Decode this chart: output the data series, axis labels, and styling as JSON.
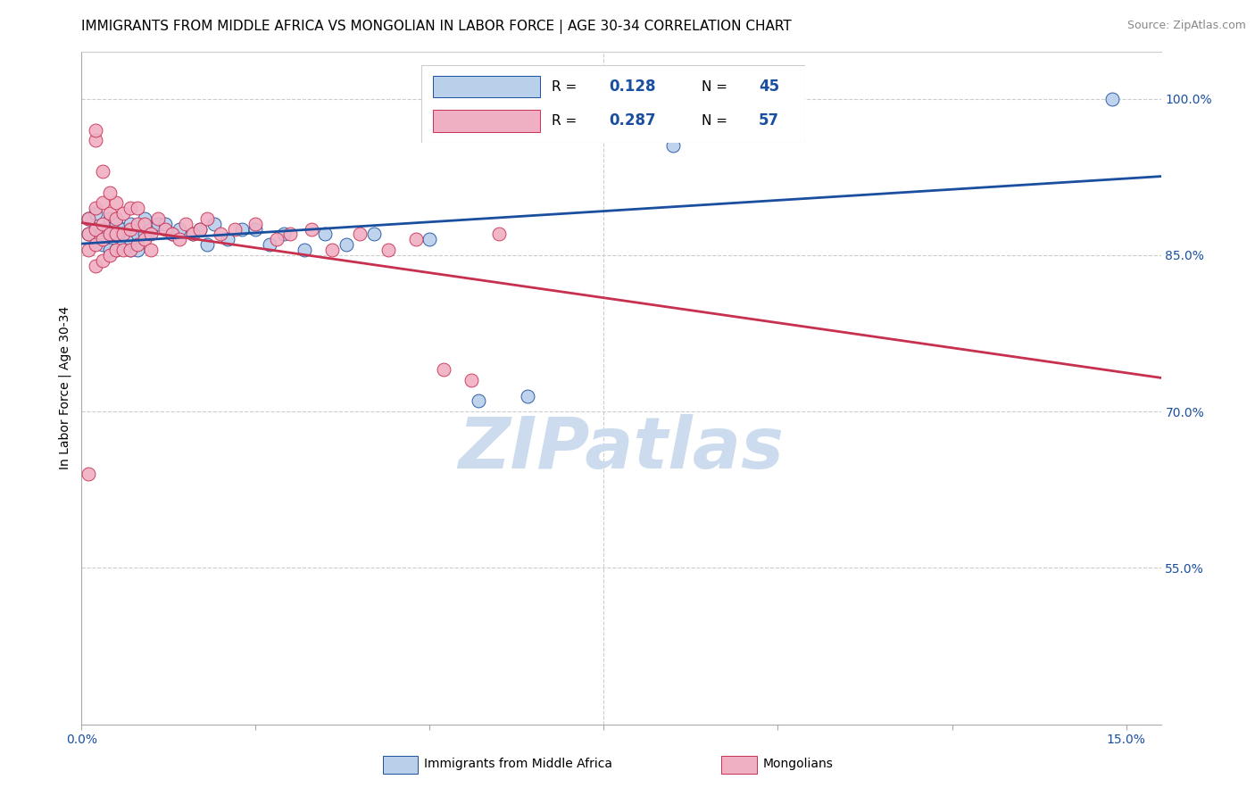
{
  "title": "IMMIGRANTS FROM MIDDLE AFRICA VS MONGOLIAN IN LABOR FORCE | AGE 30-34 CORRELATION CHART",
  "source": "Source: ZipAtlas.com",
  "ylabel": "In Labor Force | Age 30-34",
  "xlim": [
    0.0,
    0.155
  ],
  "ylim": [
    0.4,
    1.045
  ],
  "right_yticks": [
    1.0,
    0.85,
    0.7,
    0.55
  ],
  "right_yticklabels": [
    "100.0%",
    "85.0%",
    "70.0%",
    "55.0%"
  ],
  "xticks": [
    0.0,
    0.025,
    0.05,
    0.075,
    0.1,
    0.125,
    0.15
  ],
  "xticklabels": [
    "0.0%",
    "",
    "",
    "",
    "",
    "",
    "15.0%"
  ],
  "blue_R": "0.128",
  "blue_N": "45",
  "pink_R": "0.287",
  "pink_N": "57",
  "blue_color": "#b8d0ea",
  "pink_color": "#f0b0c4",
  "blue_line_color": "#1a4fa0",
  "pink_line_color": "#c83050",
  "blue_label": "Immigrants from Middle Africa",
  "pink_label": "Mongolians",
  "blue_x": [
    0.001,
    0.001,
    0.002,
    0.002,
    0.003,
    0.003,
    0.004,
    0.004,
    0.004,
    0.005,
    0.005,
    0.005,
    0.006,
    0.006,
    0.007,
    0.007,
    0.007,
    0.008,
    0.008,
    0.009,
    0.009,
    0.01,
    0.011,
    0.012,
    0.013,
    0.014,
    0.016,
    0.017,
    0.018,
    0.019,
    0.021,
    0.023,
    0.025,
    0.027,
    0.029,
    0.032,
    0.035,
    0.038,
    0.042,
    0.05,
    0.057,
    0.064,
    0.085,
    0.093,
    0.148
  ],
  "blue_y": [
    0.87,
    0.885,
    0.875,
    0.89,
    0.86,
    0.875,
    0.855,
    0.87,
    0.885,
    0.855,
    0.87,
    0.88,
    0.86,
    0.875,
    0.855,
    0.865,
    0.88,
    0.855,
    0.87,
    0.87,
    0.885,
    0.875,
    0.88,
    0.88,
    0.87,
    0.875,
    0.87,
    0.875,
    0.86,
    0.88,
    0.865,
    0.875,
    0.875,
    0.86,
    0.87,
    0.855,
    0.87,
    0.86,
    0.87,
    0.865,
    0.71,
    0.715,
    0.955,
    0.965,
    1.0
  ],
  "pink_x": [
    0.001,
    0.001,
    0.001,
    0.002,
    0.002,
    0.002,
    0.002,
    0.003,
    0.003,
    0.003,
    0.003,
    0.004,
    0.004,
    0.004,
    0.005,
    0.005,
    0.005,
    0.005,
    0.006,
    0.006,
    0.006,
    0.007,
    0.007,
    0.007,
    0.008,
    0.008,
    0.008,
    0.009,
    0.009,
    0.01,
    0.01,
    0.011,
    0.012,
    0.013,
    0.014,
    0.015,
    0.016,
    0.017,
    0.018,
    0.02,
    0.022,
    0.025,
    0.028,
    0.03,
    0.033,
    0.036,
    0.04,
    0.044,
    0.048,
    0.052,
    0.056,
    0.06,
    0.004,
    0.003,
    0.002,
    0.002,
    0.001
  ],
  "pink_y": [
    0.855,
    0.87,
    0.885,
    0.84,
    0.86,
    0.875,
    0.895,
    0.845,
    0.865,
    0.88,
    0.9,
    0.85,
    0.87,
    0.89,
    0.855,
    0.87,
    0.885,
    0.9,
    0.855,
    0.87,
    0.89,
    0.855,
    0.875,
    0.895,
    0.86,
    0.88,
    0.895,
    0.865,
    0.88,
    0.855,
    0.87,
    0.885,
    0.875,
    0.87,
    0.865,
    0.88,
    0.87,
    0.875,
    0.885,
    0.87,
    0.875,
    0.88,
    0.865,
    0.87,
    0.875,
    0.855,
    0.87,
    0.855,
    0.865,
    0.74,
    0.73,
    0.87,
    0.91,
    0.93,
    0.96,
    0.97,
    0.64
  ],
  "watermark": "ZIPatlas",
  "watermark_color": "#ccdcee",
  "grid_color": "#cccccc",
  "title_fontsize": 11,
  "axis_label_fontsize": 10,
  "tick_fontsize": 10,
  "source_fontsize": 9
}
